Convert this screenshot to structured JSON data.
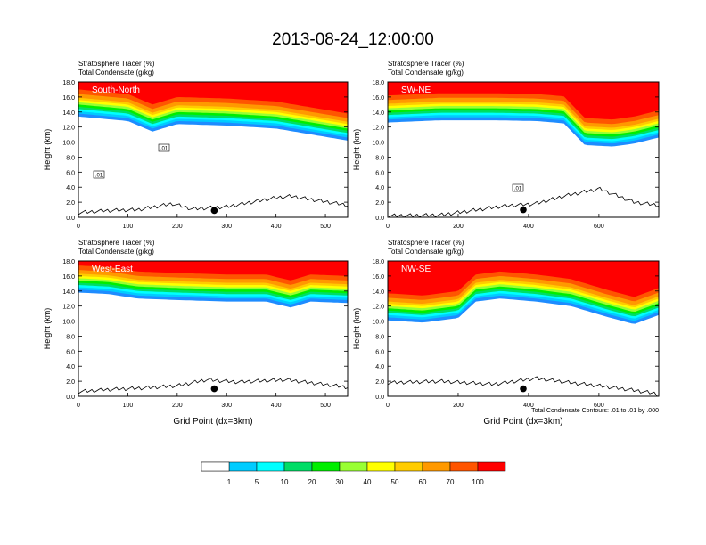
{
  "figure": {
    "title": "2013-08-24_12:00:00",
    "contour_note": "Total Condensate Contours: .01 to .01 by .000",
    "colorbar": {
      "levels": [
        "1",
        "5",
        "10",
        "20",
        "30",
        "40",
        "50",
        "60",
        "70",
        "100"
      ],
      "colors": [
        "#ffffff",
        "#1e8cff",
        "#00ccff",
        "#00ffff",
        "#00dd66",
        "#00ee00",
        "#99ff33",
        "#ffff00",
        "#ffcc00",
        "#ff9900",
        "#ff5500",
        "#ff0000"
      ]
    }
  },
  "chart_data": [
    {
      "type": "heatmap",
      "panel": "South-North",
      "label": "South-North",
      "field_label": "Stratosphere Tracer   (%)",
      "contour_label": "Total Condensate   (g/kg)",
      "ylabel": "Height (km)",
      "xlabel": "",
      "xlim": [
        0,
        545
      ],
      "ylim": [
        0,
        18
      ],
      "x_ticks": [
        "0",
        "100",
        "200",
        "300",
        "400",
        "500"
      ],
      "y_ticks": [
        "0.0",
        "2.0",
        "4.0",
        "6.0",
        "8.0",
        "10.0",
        "12.0",
        "14.0",
        "16.0",
        "18.0"
      ],
      "contour_labels": [
        ".01",
        ".01"
      ],
      "tropopause_km": {
        "x": [
          0,
          100,
          150,
          200,
          300,
          400,
          545
        ],
        "y": [
          14.8,
          14.2,
          12.8,
          13.8,
          13.6,
          13.2,
          11.6
        ]
      },
      "terrain_km": {
        "x": [
          0,
          60,
          120,
          190,
          230,
          300,
          400,
          430,
          545
        ],
        "y": [
          0.6,
          0.9,
          1.0,
          1.8,
          1.1,
          1.4,
          2.6,
          2.8,
          1.6
        ]
      },
      "marker": {
        "x": 275,
        "y": 0.9
      }
    },
    {
      "type": "heatmap",
      "panel": "SW-NE",
      "label": "SW-NE",
      "field_label": "Stratosphere Tracer   (%)",
      "contour_label": "Total Condensate   (g/kg)",
      "ylabel": "Height (km)",
      "xlabel": "",
      "xlim": [
        0,
        770
      ],
      "ylim": [
        0,
        18
      ],
      "x_ticks": [
        "0",
        "200",
        "400",
        "600"
      ],
      "y_ticks": [
        "0.0",
        "2.0",
        "4.0",
        "6.0",
        "8.0",
        "10.0",
        "12.0",
        "14.0",
        "16.0",
        "18.0"
      ],
      "contour_labels": [
        ".01"
      ],
      "tropopause_km": {
        "x": [
          0,
          150,
          300,
          420,
          500,
          560,
          640,
          700,
          770
        ],
        "y": [
          14.0,
          14.3,
          14.3,
          14.2,
          13.9,
          11.0,
          10.8,
          11.2,
          12.0
        ]
      },
      "terrain_km": {
        "x": [
          0,
          150,
          330,
          420,
          500,
          600,
          700,
          770
        ],
        "y": [
          0.2,
          0.3,
          1.5,
          1.8,
          2.8,
          3.8,
          2.0,
          1.6
        ]
      },
      "marker": {
        "x": 385,
        "y": 1.0
      }
    },
    {
      "type": "heatmap",
      "panel": "West-East",
      "label": "West-East",
      "field_label": "Stratosphere Tracer   (%)",
      "contour_label": "Total Condensate   (g/kg)",
      "ylabel": "Height (km)",
      "xlabel": "Grid Point (dx=3km)",
      "xlim": [
        0,
        545
      ],
      "ylim": [
        0,
        18
      ],
      "x_ticks": [
        "0",
        "100",
        "200",
        "300",
        "400",
        "500"
      ],
      "y_ticks": [
        "0.0",
        "2.0",
        "4.0",
        "6.0",
        "8.0",
        "10.0",
        "12.0",
        "14.0",
        "16.0",
        "18.0"
      ],
      "contour_labels": [],
      "tropopause_km": {
        "x": [
          0,
          60,
          120,
          200,
          300,
          380,
          430,
          470,
          545
        ],
        "y": [
          15.2,
          15.0,
          14.4,
          14.2,
          14.0,
          14.0,
          13.2,
          14.0,
          13.8
        ]
      },
      "terrain_km": {
        "x": [
          0,
          60,
          130,
          200,
          260,
          320,
          420,
          545
        ],
        "y": [
          0.6,
          0.9,
          1.1,
          1.4,
          2.2,
          1.9,
          2.2,
          1.2
        ]
      },
      "marker": {
        "x": 275,
        "y": 1.0
      }
    },
    {
      "type": "heatmap",
      "panel": "NW-SE",
      "label": "NW-SE",
      "field_label": "Stratosphere Tracer   (%)",
      "contour_label": "Total Condensate   (g/kg)",
      "ylabel": "Height (km)",
      "xlabel": "Grid Point (dx=3km)",
      "xlim": [
        0,
        770
      ],
      "ylim": [
        0,
        18
      ],
      "x_ticks": [
        "0",
        "200",
        "400",
        "600"
      ],
      "y_ticks": [
        "0.0",
        "2.0",
        "4.0",
        "6.0",
        "8.0",
        "10.0",
        "12.0",
        "14.0",
        "16.0",
        "18.0"
      ],
      "contour_labels": [],
      "tropopause_km": {
        "x": [
          0,
          100,
          200,
          250,
          320,
          420,
          520,
          620,
          700,
          770
        ],
        "y": [
          11.5,
          11.2,
          11.8,
          14.0,
          14.4,
          14.0,
          13.4,
          12.0,
          11.0,
          12.2
        ]
      },
      "terrain_km": {
        "x": [
          0,
          150,
          300,
          420,
          520,
          600,
          700,
          770
        ],
        "y": [
          1.8,
          2.0,
          1.6,
          2.4,
          1.8,
          1.4,
          0.8,
          0.3
        ]
      },
      "marker": {
        "x": 385,
        "y": 1.0
      }
    }
  ]
}
